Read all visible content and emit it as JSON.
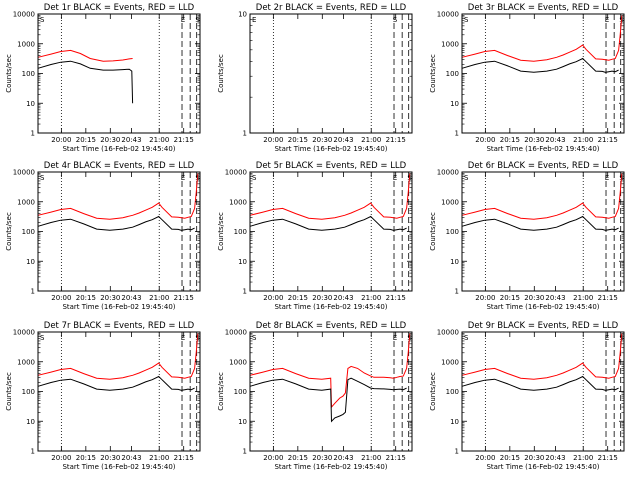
{
  "chart_data": [
    {
      "type": "line",
      "title": "Det 1r BLACK = Events, RED = LLD",
      "xlabel": "Start Time (16-Feb-02 19:45:40)",
      "ylabel": "Counts/sec",
      "ylog": true,
      "ylim": [
        1,
        10000
      ],
      "xlim": [
        "19:45:40",
        "21:25:00"
      ],
      "x_ticks": [
        "20:00",
        "20:15",
        "20:30",
        "20:43",
        "21:00",
        "21:15"
      ],
      "y_ticks": [
        "1",
        "10",
        "100",
        "1000",
        "10000"
      ],
      "markers": [
        "S",
        "E",
        "S"
      ],
      "series": [
        {
          "color": "#ff0000",
          "x": [
            0,
            8,
            14,
            20,
            26,
            32,
            40,
            46,
            52,
            56,
            58
          ],
          "y": [
            350,
            450,
            550,
            600,
            470,
            320,
            260,
            265,
            285,
            310,
            320
          ]
        },
        {
          "color": "#000000",
          "x": [
            0,
            8,
            14,
            20,
            26,
            32,
            40,
            46,
            52,
            56,
            57.5,
            58
          ],
          "y": [
            150,
            200,
            240,
            260,
            210,
            150,
            130,
            130,
            135,
            140,
            120,
            10
          ]
        }
      ]
    },
    {
      "type": "line",
      "title": "Det 2r BLACK = Events, RED = LLD",
      "xlabel": "Start Time (16-Feb-02 19:45:40)",
      "ylabel": "Counts/sec",
      "ylog": true,
      "ylim": [
        1,
        10
      ],
      "xlim": [
        "19:45:40",
        "21:25:00"
      ],
      "x_ticks": [
        "20:00",
        "20:15",
        "20:30",
        "20:43",
        "21:00",
        "21:15"
      ],
      "y_ticks": [
        "1",
        "10"
      ],
      "markers": [
        "E",
        "S"
      ],
      "series": []
    },
    {
      "type": "line",
      "title": "Det 3r BLACK = Events, RED = LLD",
      "xlabel": "Start Time (16-Feb-02 19:45:40)",
      "ylabel": "Counts/sec",
      "ylog": true,
      "ylim": [
        1,
        10000
      ],
      "xlim": [
        "19:45:40",
        "21:25:00"
      ],
      "x_ticks": [
        "20:00",
        "20:15",
        "20:30",
        "20:43",
        "21:00",
        "21:15"
      ],
      "y_ticks": [
        "1",
        "10",
        "100",
        "1000",
        "10000"
      ],
      "markers": [
        "S",
        "E",
        "S"
      ],
      "series": [
        {
          "color": "#ff0000",
          "x": [
            0,
            8,
            14,
            20,
            28,
            36,
            44,
            52,
            58,
            62,
            66,
            70,
            74,
            76,
            82,
            86,
            88,
            90,
            92,
            94,
            96,
            97,
            98
          ],
          "y": [
            350,
            450,
            550,
            600,
            400,
            280,
            260,
            290,
            350,
            420,
            520,
            650,
            900,
            650,
            310,
            300,
            290,
            280,
            300,
            320,
            600,
            2000,
            9000
          ]
        },
        {
          "color": "#000000",
          "x": [
            0,
            8,
            14,
            20,
            28,
            36,
            44,
            52,
            58,
            62,
            66,
            70,
            74,
            76,
            82,
            86,
            88,
            90,
            92,
            94,
            96
          ],
          "y": [
            150,
            200,
            240,
            260,
            180,
            120,
            110,
            120,
            140,
            170,
            210,
            250,
            320,
            250,
            120,
            118,
            110,
            115,
            120,
            115,
            130
          ]
        }
      ]
    },
    {
      "type": "line",
      "title": "Det 4r BLACK = Events, RED = LLD",
      "xlabel": "Start Time (16-Feb-02 19:45:40)",
      "ylabel": "Counts/sec",
      "ylog": true,
      "ylim": [
        1,
        10000
      ],
      "xlim": [
        "19:45:40",
        "21:25:00"
      ],
      "x_ticks": [
        "20:00",
        "20:15",
        "20:30",
        "20:43",
        "21:00",
        "21:15"
      ],
      "y_ticks": [
        "1",
        "10",
        "100",
        "1000",
        "10000"
      ],
      "markers": [
        "S",
        "E",
        "S"
      ],
      "series": [
        {
          "color": "#ff0000",
          "x": [
            0,
            8,
            14,
            20,
            28,
            36,
            44,
            52,
            58,
            62,
            66,
            70,
            74,
            76,
            82,
            86,
            88,
            90,
            92,
            94,
            96,
            97,
            98
          ],
          "y": [
            350,
            450,
            550,
            600,
            400,
            280,
            260,
            290,
            350,
            420,
            520,
            650,
            900,
            650,
            310,
            300,
            290,
            280,
            300,
            320,
            600,
            2000,
            9000
          ]
        },
        {
          "color": "#000000",
          "x": [
            0,
            8,
            14,
            20,
            28,
            36,
            44,
            52,
            58,
            62,
            66,
            70,
            74,
            76,
            82,
            86,
            88,
            90,
            92,
            94,
            96
          ],
          "y": [
            150,
            200,
            240,
            260,
            180,
            120,
            110,
            120,
            140,
            170,
            210,
            250,
            320,
            250,
            120,
            118,
            110,
            115,
            120,
            115,
            130
          ]
        }
      ]
    },
    {
      "type": "line",
      "title": "Det 5r BLACK = Events, RED = LLD",
      "xlabel": "Start Time (16-Feb-02 19:45:40)",
      "ylabel": "Counts/sec",
      "ylog": true,
      "ylim": [
        1,
        10000
      ],
      "xlim": [
        "19:45:40",
        "21:25:00"
      ],
      "x_ticks": [
        "20:00",
        "20:15",
        "20:30",
        "20:43",
        "21:00",
        "21:15"
      ],
      "y_ticks": [
        "1",
        "10",
        "100",
        "1000",
        "10000"
      ],
      "markers": [
        "S",
        "E",
        "S"
      ],
      "series": [
        {
          "color": "#ff0000",
          "x": [
            0,
            8,
            14,
            20,
            28,
            36,
            44,
            52,
            58,
            62,
            66,
            70,
            74,
            76,
            82,
            86,
            88,
            90,
            92,
            94,
            96,
            97,
            98
          ],
          "y": [
            350,
            450,
            550,
            600,
            400,
            280,
            260,
            290,
            350,
            420,
            520,
            650,
            900,
            650,
            310,
            300,
            290,
            280,
            300,
            320,
            600,
            2000,
            9000
          ]
        },
        {
          "color": "#000000",
          "x": [
            0,
            8,
            14,
            20,
            28,
            36,
            44,
            52,
            58,
            62,
            66,
            70,
            74,
            76,
            82,
            86,
            88,
            90,
            92,
            94,
            96
          ],
          "y": [
            150,
            200,
            240,
            260,
            180,
            120,
            110,
            120,
            140,
            170,
            210,
            250,
            320,
            250,
            120,
            118,
            110,
            115,
            120,
            115,
            130
          ]
        }
      ]
    },
    {
      "type": "line",
      "title": "Det 6r BLACK = Events, RED = LLD",
      "xlabel": "Start Time (16-Feb-02 19:45:40)",
      "ylabel": "Counts/sec",
      "ylog": true,
      "ylim": [
        1,
        10000
      ],
      "xlim": [
        "19:45:40",
        "21:25:00"
      ],
      "x_ticks": [
        "20:00",
        "20:15",
        "20:30",
        "20:43",
        "21:00",
        "21:15"
      ],
      "y_ticks": [
        "1",
        "10",
        "100",
        "1000",
        "10000"
      ],
      "markers": [
        "S",
        "E",
        "S"
      ],
      "series": [
        {
          "color": "#ff0000",
          "x": [
            0,
            8,
            14,
            20,
            28,
            36,
            44,
            52,
            58,
            62,
            66,
            70,
            74,
            76,
            82,
            86,
            88,
            90,
            92,
            94,
            96,
            97,
            98
          ],
          "y": [
            350,
            450,
            550,
            600,
            400,
            280,
            260,
            290,
            350,
            420,
            520,
            650,
            900,
            650,
            310,
            300,
            290,
            280,
            300,
            320,
            600,
            2000,
            9000
          ]
        },
        {
          "color": "#000000",
          "x": [
            0,
            8,
            14,
            20,
            28,
            36,
            44,
            52,
            58,
            62,
            66,
            70,
            74,
            76,
            82,
            86,
            88,
            90,
            92,
            94,
            96
          ],
          "y": [
            150,
            200,
            240,
            260,
            180,
            120,
            110,
            120,
            140,
            170,
            210,
            250,
            320,
            250,
            120,
            118,
            110,
            115,
            120,
            115,
            130
          ]
        }
      ]
    },
    {
      "type": "line",
      "title": "Det 7r BLACK = Events, RED = LLD",
      "xlabel": "Start Time (16-Feb-02 19:45:40)",
      "ylabel": "Counts/sec",
      "ylog": true,
      "ylim": [
        1,
        10000
      ],
      "xlim": [
        "19:45:40",
        "21:25:00"
      ],
      "x_ticks": [
        "20:00",
        "20:15",
        "20:30",
        "20:43",
        "21:00",
        "21:15"
      ],
      "y_ticks": [
        "1",
        "10",
        "100",
        "1000",
        "10000"
      ],
      "markers": [
        "S",
        "E",
        "S"
      ],
      "series": [
        {
          "color": "#ff0000",
          "x": [
            0,
            8,
            14,
            20,
            28,
            36,
            44,
            52,
            58,
            62,
            66,
            70,
            74,
            76,
            82,
            86,
            88,
            90,
            92,
            94,
            96,
            97,
            98
          ],
          "y": [
            350,
            450,
            550,
            600,
            400,
            280,
            260,
            290,
            350,
            420,
            520,
            650,
            900,
            650,
            310,
            300,
            290,
            280,
            300,
            320,
            600,
            2000,
            9000
          ]
        },
        {
          "color": "#000000",
          "x": [
            0,
            8,
            14,
            20,
            28,
            36,
            44,
            52,
            58,
            62,
            66,
            70,
            74,
            76,
            82,
            86,
            88,
            90,
            92,
            94,
            96
          ],
          "y": [
            150,
            200,
            240,
            260,
            180,
            120,
            110,
            120,
            140,
            170,
            210,
            250,
            320,
            250,
            120,
            118,
            110,
            115,
            120,
            115,
            130
          ]
        }
      ]
    },
    {
      "type": "line",
      "title": "Det 8r BLACK = Events, RED = LLD",
      "xlabel": "Start Time (16-Feb-02 19:45:40)",
      "ylabel": "Counts/sec",
      "ylog": true,
      "ylim": [
        1,
        10000
      ],
      "xlim": [
        "19:45:40",
        "21:25:00"
      ],
      "x_ticks": [
        "20:00",
        "20:15",
        "20:30",
        "20:43",
        "21:00",
        "21:15"
      ],
      "y_ticks": [
        "1",
        "10",
        "100",
        "1000",
        "10000"
      ],
      "markers": [
        "S",
        "E",
        "S"
      ],
      "series": [
        {
          "color": "#ff0000",
          "x": [
            0,
            8,
            14,
            20,
            28,
            36,
            44,
            49.5,
            50,
            52,
            55,
            57,
            58.5,
            60,
            62,
            66,
            70,
            74,
            76,
            82,
            86,
            88,
            90,
            92,
            94,
            96,
            97,
            98
          ],
          "y": [
            350,
            450,
            550,
            600,
            400,
            280,
            260,
            280,
            30,
            40,
            60,
            70,
            90,
            600,
            700,
            600,
            420,
            330,
            300,
            300,
            290,
            280,
            300,
            320,
            330,
            600,
            2000,
            9000
          ]
        },
        {
          "color": "#000000",
          "x": [
            0,
            8,
            14,
            20,
            28,
            36,
            44,
            49.5,
            50,
            52,
            55,
            57,
            58.5,
            60,
            62,
            66,
            70,
            74,
            76,
            82,
            86,
            88,
            90,
            92,
            94,
            96
          ],
          "y": [
            150,
            200,
            240,
            260,
            180,
            120,
            110,
            120,
            10,
            13,
            15,
            17,
            20,
            250,
            280,
            220,
            170,
            130,
            125,
            122,
            118,
            115,
            118,
            120,
            115,
            130
          ]
        }
      ]
    },
    {
      "type": "line",
      "title": "Det 9r BLACK = Events, RED = LLD",
      "xlabel": "Start Time (16-Feb-02 19:45:40)",
      "ylabel": "Counts/sec",
      "ylog": true,
      "ylim": [
        1,
        10000
      ],
      "xlim": [
        "19:45:40",
        "21:25:00"
      ],
      "x_ticks": [
        "20:00",
        "20:15",
        "20:30",
        "20:43",
        "21:00",
        "21:15"
      ],
      "y_ticks": [
        "1",
        "10",
        "100",
        "1000",
        "10000"
      ],
      "markers": [
        "S",
        "E",
        "S"
      ],
      "series": [
        {
          "color": "#ff0000",
          "x": [
            0,
            8,
            14,
            20,
            28,
            36,
            44,
            52,
            58,
            62,
            66,
            70,
            74,
            76,
            82,
            86,
            88,
            90,
            92,
            94,
            96,
            97,
            98
          ],
          "y": [
            350,
            450,
            550,
            600,
            400,
            280,
            260,
            290,
            350,
            420,
            520,
            650,
            900,
            650,
            310,
            300,
            290,
            280,
            300,
            320,
            600,
            2000,
            9000
          ]
        },
        {
          "color": "#000000",
          "x": [
            0,
            8,
            14,
            20,
            28,
            36,
            44,
            52,
            58,
            62,
            66,
            70,
            74,
            76,
            82,
            86,
            88,
            90,
            92,
            94,
            96
          ],
          "y": [
            150,
            200,
            240,
            260,
            180,
            120,
            110,
            120,
            140,
            170,
            210,
            250,
            320,
            250,
            120,
            118,
            110,
            115,
            120,
            115,
            130
          ]
        }
      ]
    }
  ]
}
